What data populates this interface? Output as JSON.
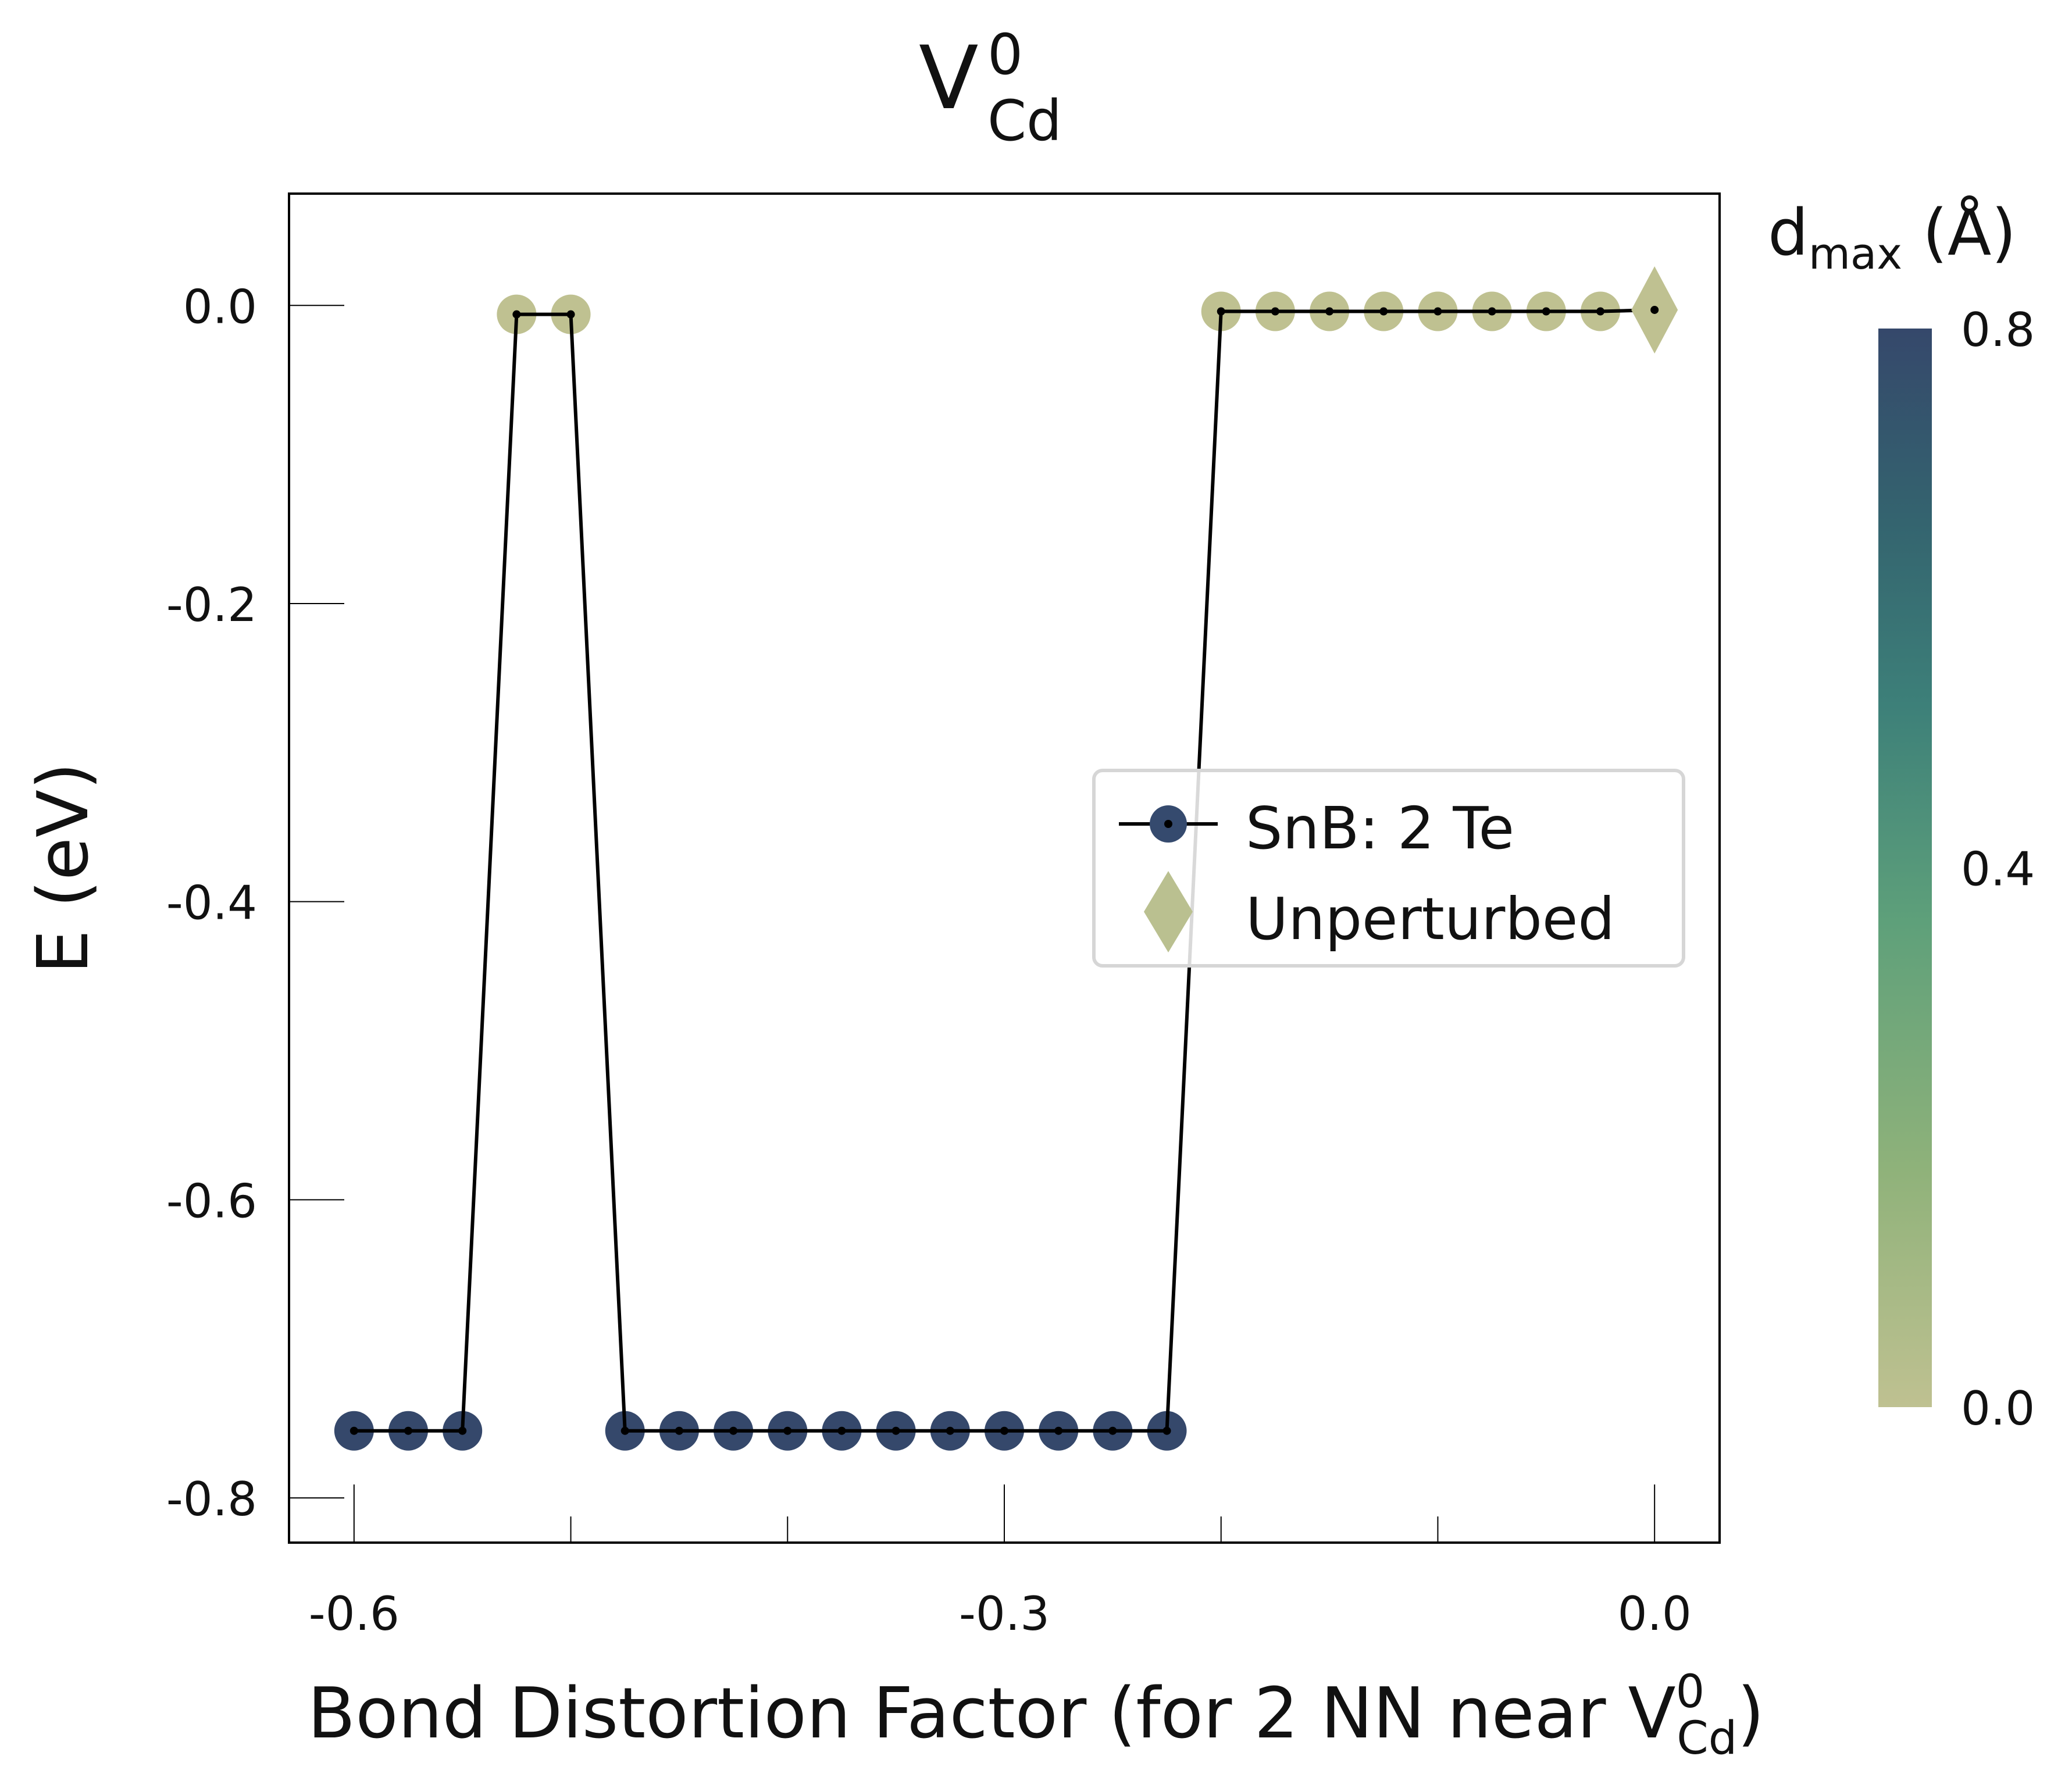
{
  "title": {
    "main": "V",
    "sup": "0",
    "sub": "Cd"
  },
  "xlabel": {
    "text": "Bond Distortion Factor (for 2 NN near V",
    "sup": "0",
    "sub": "Cd",
    "close": ")"
  },
  "ylabel": "E (eV)",
  "colorbar": {
    "title": "d",
    "title_sub": "max",
    "title_unit": " (Å)",
    "ticks": [
      "0.0",
      "0.4",
      "0.8"
    ],
    "range": [
      0.0,
      0.8
    ],
    "colors": [
      "#bfc191",
      "#8fb27a",
      "#5ea07a",
      "#3d8079",
      "#34646f",
      "#35486b"
    ]
  },
  "legend": [
    {
      "label": "SnB: 2 Te",
      "marker": "circle-line"
    },
    {
      "label": "Unperturbed",
      "marker": "diamond"
    }
  ],
  "colors": {
    "dark": "#354a6e",
    "light": "#bac090",
    "line": "#000000"
  },
  "chart_data": {
    "type": "scatter",
    "xlim": [
      -0.63,
      0.03
    ],
    "ylim": [
      -0.83,
      0.075
    ],
    "xticks": [
      -0.6,
      -0.3,
      0.0
    ],
    "xtick_labels": [
      "-0.6",
      "-0.3",
      "0.0"
    ],
    "xminor": [
      -0.5,
      -0.4,
      -0.2,
      -0.1
    ],
    "yticks": [
      0.0,
      -0.2,
      -0.4,
      -0.6,
      -0.8
    ],
    "ytick_labels": [
      "0.0",
      "-0.2",
      "-0.4",
      "-0.6",
      "-0.8"
    ],
    "series": [
      {
        "name": "SnB: 2 Te",
        "x": [
          -0.6,
          -0.575,
          -0.55,
          -0.525,
          -0.5,
          -0.475,
          -0.45,
          -0.425,
          -0.4,
          -0.375,
          -0.35,
          -0.325,
          -0.3,
          -0.275,
          -0.25,
          -0.225,
          -0.2,
          -0.175,
          -0.15,
          -0.125,
          -0.1,
          -0.075,
          -0.05,
          -0.025
        ],
        "y": [
          -0.755,
          -0.755,
          -0.755,
          -0.006,
          -0.006,
          -0.755,
          -0.755,
          -0.755,
          -0.755,
          -0.755,
          -0.755,
          -0.755,
          -0.755,
          -0.755,
          -0.755,
          -0.755,
          -0.004,
          -0.004,
          -0.004,
          -0.004,
          -0.004,
          -0.004,
          -0.004,
          -0.004
        ],
        "d_max": [
          0.8,
          0.8,
          0.8,
          0.0,
          0.0,
          0.8,
          0.8,
          0.8,
          0.8,
          0.8,
          0.8,
          0.8,
          0.8,
          0.8,
          0.8,
          0.8,
          0.0,
          0.0,
          0.0,
          0.0,
          0.0,
          0.0,
          0.0,
          0.0
        ]
      },
      {
        "name": "Unperturbed",
        "x": [
          0.0
        ],
        "y": [
          -0.003
        ],
        "d_max": [
          0.0
        ]
      }
    ]
  }
}
